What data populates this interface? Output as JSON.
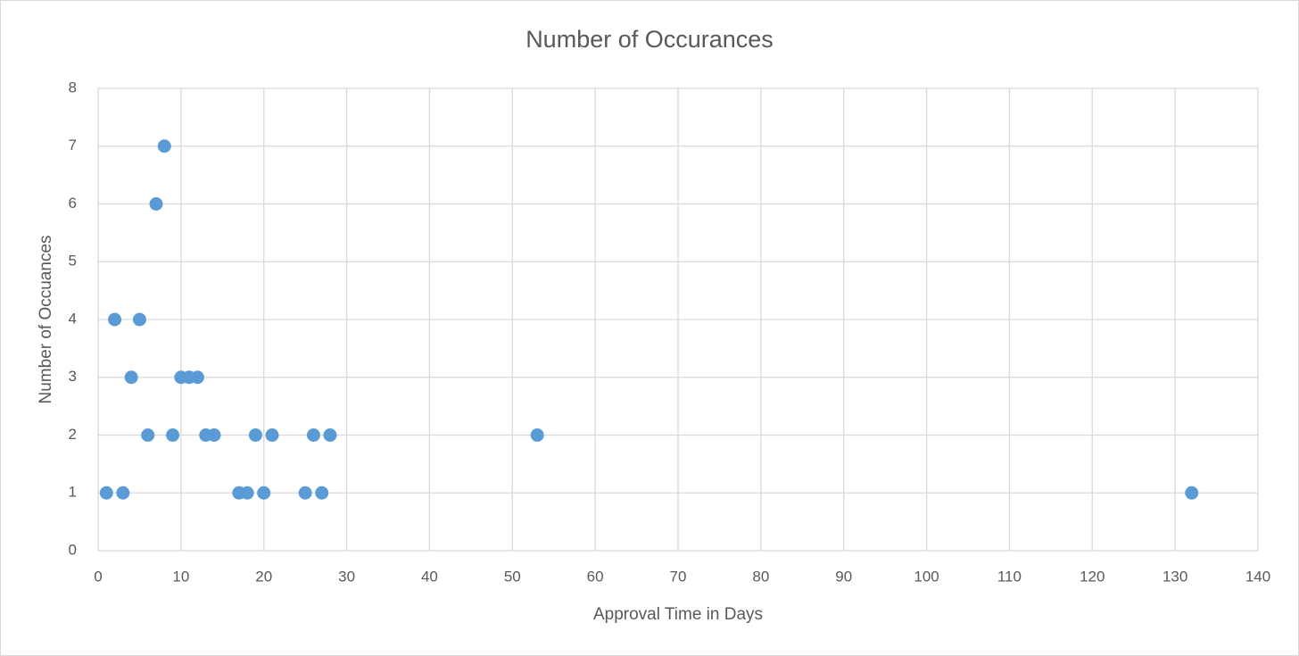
{
  "chart_data": {
    "type": "scatter",
    "title": "Number of Occurances",
    "x_label": "Approval Time in Days",
    "y_label": "Number of Occuances",
    "x": [
      1,
      2,
      3,
      4,
      5,
      6,
      7,
      8,
      9,
      10,
      11,
      12,
      13,
      14,
      17,
      18,
      19,
      20,
      21,
      25,
      26,
      27,
      28,
      53,
      132
    ],
    "values": [
      1,
      4,
      1,
      3,
      4,
      2,
      6,
      7,
      2,
      3,
      3,
      3,
      2,
      2,
      1,
      1,
      2,
      1,
      2,
      1,
      2,
      1,
      2,
      2,
      1
    ],
    "color": "#5b9bd5",
    "xlim": [
      0,
      140
    ],
    "xticks": [
      0,
      10,
      20,
      30,
      40,
      50,
      60,
      70,
      80,
      90,
      100,
      110,
      120,
      130,
      140
    ],
    "ylim": [
      0,
      8
    ],
    "yticks": [
      0,
      1,
      2,
      3,
      4,
      5,
      6,
      7,
      8
    ],
    "grid": true
  }
}
